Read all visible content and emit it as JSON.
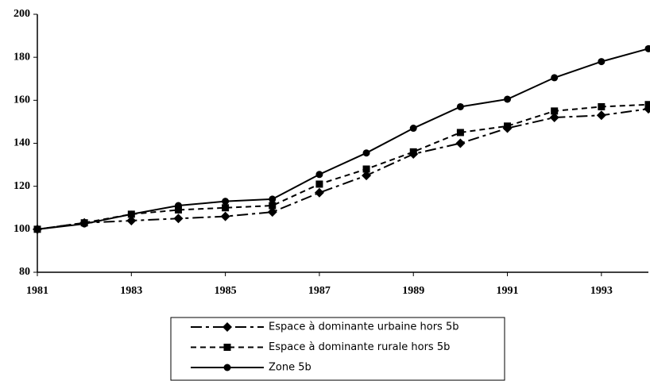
{
  "chart_data": {
    "type": "line",
    "x": [
      1981,
      1982,
      1983,
      1984,
      1985,
      1986,
      1987,
      1988,
      1989,
      1990,
      1991,
      1992,
      1993,
      1994
    ],
    "series": [
      {
        "name": "Espace à dominante urbaine hors 5b",
        "color": "#000000",
        "marker": "diamond",
        "dash": "dashdot",
        "values": [
          100,
          103,
          104,
          105,
          106,
          108,
          117,
          125,
          135,
          140,
          147,
          152,
          153,
          156
        ]
      },
      {
        "name": "Espace à dominante rurale hors 5b",
        "color": "#000000",
        "marker": "square",
        "dash": "dashed",
        "values": [
          100,
          103,
          107,
          109,
          110,
          111,
          121,
          128,
          136,
          145,
          148,
          155,
          157,
          158
        ]
      },
      {
        "name": "Zone 5b",
        "color": "#000000",
        "marker": "circle",
        "dash": "solid",
        "values": [
          100,
          102.5,
          107,
          111,
          113,
          114,
          125.5,
          135.5,
          147,
          157,
          160.5,
          170.5,
          178,
          184
        ]
      }
    ],
    "xlim": [
      1981,
      1994
    ],
    "xticks": [
      1981,
      1983,
      1985,
      1987,
      1989,
      1991,
      1993
    ],
    "ylim": [
      80,
      200
    ],
    "yticks": [
      80,
      100,
      120,
      140,
      160,
      180,
      200
    ],
    "grid": false,
    "legend": "bottom"
  }
}
